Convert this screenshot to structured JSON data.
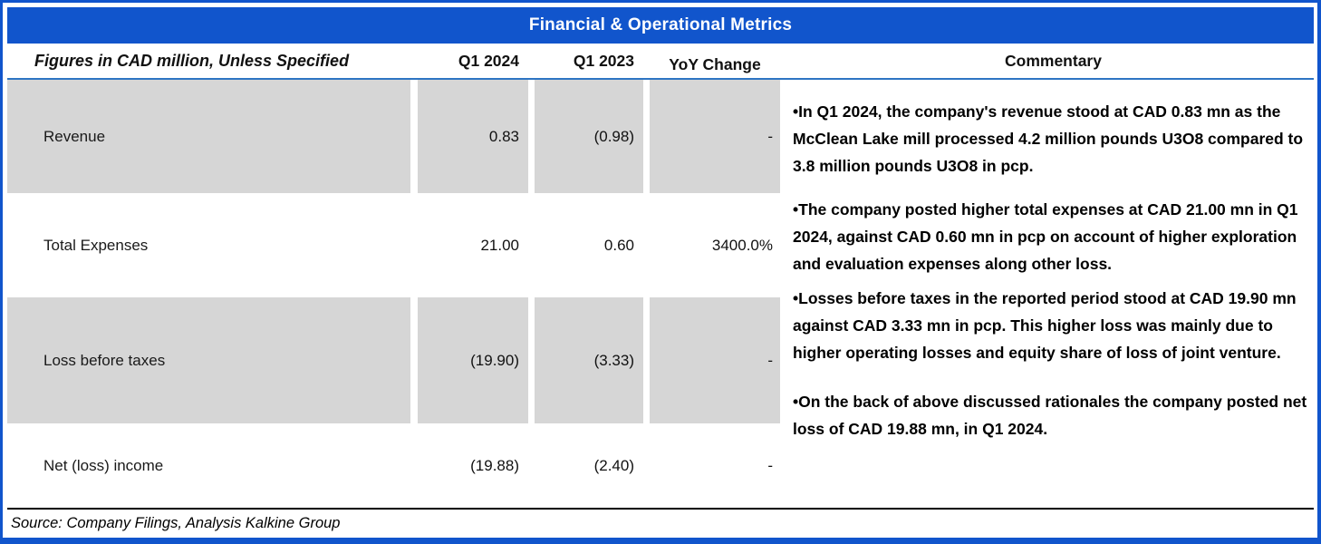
{
  "title": "Financial & Operational Metrics",
  "colors": {
    "blue": "#1155CC",
    "underline-blue": "#2E75C3",
    "band-gray": "#D6D6D6"
  },
  "header": {
    "label": "Figures in CAD million, Unless Specified",
    "q1_2024": "Q1 2024",
    "q1_2023": "Q1 2023",
    "yoy": "YoY Change",
    "commentary": "Commentary"
  },
  "rows": [
    {
      "label": "Revenue",
      "q1_2024": "0.83",
      "q1_2023": "(0.98)",
      "yoy": "-"
    },
    {
      "label": "Total Expenses",
      "q1_2024": "21.00",
      "q1_2023": "0.60",
      "yoy": "3400.0%"
    },
    {
      "label": "Loss before taxes",
      "q1_2024": "(19.90)",
      "q1_2023": "(3.33)",
      "yoy": "-"
    },
    {
      "label": "Net (loss) income",
      "q1_2024": "(19.88)",
      "q1_2023": "(2.40)",
      "yoy": "-"
    }
  ],
  "commentary": [
    "•In Q1 2024, the company's revenue stood at CAD 0.83 mn as the McClean Lake mill processed 4.2 million pounds U3O8 compared to 3.8 million pounds U3O8 in pcp.",
    "•The company posted higher total expenses at CAD 21.00 mn in Q1 2024, against CAD 0.60 mn in pcp on account of higher exploration and evaluation expenses along other loss.",
    "•Losses before taxes in the reported period stood at CAD 19.90 mn against CAD 3.33 mn in pcp. This higher loss was mainly due to higher operating losses and equity share of loss of joint venture.",
    "•On the back of above discussed rationales the company posted net loss of CAD 19.88 mn, in Q1 2024."
  ],
  "source": "Source: Company Filings, Analysis Kalkine Group"
}
